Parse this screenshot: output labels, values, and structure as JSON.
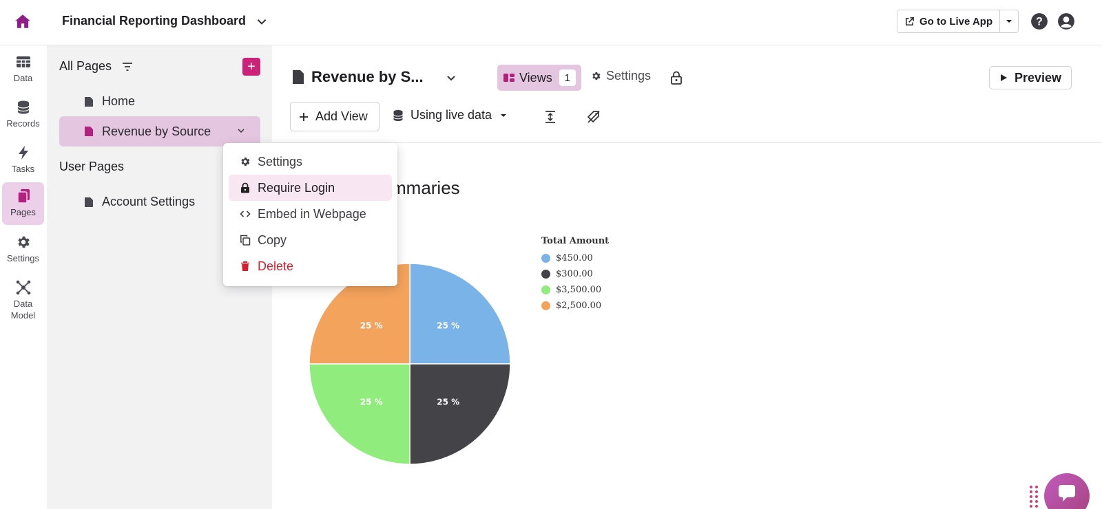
{
  "header": {
    "app_title": "Financial Reporting Dashboard",
    "live_app_label": "Go to Live App"
  },
  "rail": {
    "items": [
      {
        "label": "Data",
        "icon": "table-icon"
      },
      {
        "label": "Records",
        "icon": "database-icon"
      },
      {
        "label": "Tasks",
        "icon": "bolt-icon"
      },
      {
        "label": "Pages",
        "icon": "pages-icon",
        "active": true
      },
      {
        "label": "Settings",
        "icon": "gear-icon"
      },
      {
        "label": "Data",
        "label2": "Model",
        "icon": "network-icon"
      }
    ]
  },
  "pages_panel": {
    "title": "All Pages",
    "items": [
      "Home",
      "Revenue by Source"
    ],
    "user_section": "User Pages",
    "user_items": [
      "Account Settings"
    ]
  },
  "context_menu": {
    "items": [
      "Settings",
      "Require Login",
      "Embed in Webpage",
      "Copy",
      "Delete"
    ]
  },
  "main": {
    "page_name": "Revenue by S...",
    "views_label": "Views",
    "views_count": "1",
    "settings_label": "Settings",
    "preview_label": "Preview",
    "add_view_label": "Add View",
    "live_data_label": "Using live data",
    "section_title": "mmaries"
  },
  "chart_data": {
    "type": "pie",
    "legend_title": "Total Amount",
    "legend_placement": "right",
    "slices": [
      {
        "label": "$450.00",
        "value": 25,
        "display": "25 %",
        "color": "#7ab3e8"
      },
      {
        "label": "$300.00",
        "value": 25,
        "display": "25 %",
        "color": "#434348"
      },
      {
        "label": "$3,500.00",
        "value": 25,
        "display": "25 %",
        "color": "#90ed7d"
      },
      {
        "label": "$2,500.00",
        "value": 25,
        "display": "25 %",
        "color": "#f4a35c"
      }
    ]
  },
  "colors": {
    "brand": "#cc2277",
    "home_icon": "#8f1e86",
    "active_bg": "#e5c6e0",
    "danger": "#d41e2e"
  }
}
